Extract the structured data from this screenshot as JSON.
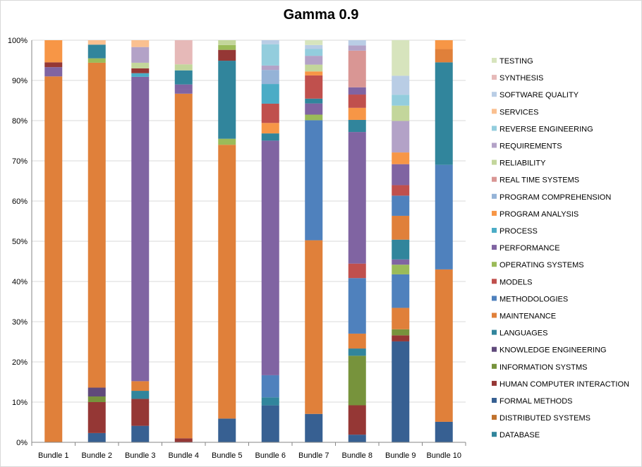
{
  "chart_data": {
    "type": "bar",
    "stacked": true,
    "percent": true,
    "title": "Gamma 0.9",
    "xlabel": "",
    "ylabel": "",
    "ylim": [
      0,
      100
    ],
    "yticks": [
      "0%",
      "10%",
      "20%",
      "30%",
      "40%",
      "50%",
      "60%",
      "70%",
      "80%",
      "90%",
      "100%"
    ],
    "legend_position": "right",
    "categories": [
      "Bundle 1",
      "Bundle 2",
      "Bundle 3",
      "Bundle 4",
      "Bundle 5",
      "Bundle 6",
      "Bundle 7",
      "Bundle 8",
      "Bundle 9",
      "Bundle 10"
    ],
    "series": [
      {
        "name": "DATABASE",
        "color": "#2E5C8A",
        "values": [
          0,
          0,
          0,
          0,
          0,
          0,
          0,
          0,
          0,
          0
        ]
      },
      {
        "name": "DISTRIBUTED SYSTEMS",
        "color": "#C0722E",
        "values": [
          0,
          0,
          0,
          0,
          0,
          0,
          0,
          0,
          0,
          0
        ]
      },
      {
        "name": "FORMAL METHODS",
        "color": "#3F6FA3",
        "values": [
          0,
          2.3,
          4.1,
          0,
          5.9,
          9.2,
          7.1,
          1.9,
          25.0,
          5.1
        ]
      },
      {
        "name": "HUMAN COMPUTER INTERACTION",
        "color": "#9E3B38",
        "values": [
          0,
          7.7,
          6.7,
          1.0,
          0,
          0,
          0,
          7.3,
          1.5,
          0
        ]
      },
      {
        "name": "INFORMATION SYSTMS",
        "color": "#7A9A3A",
        "values": [
          0,
          1.4,
          0,
          0,
          0,
          0,
          0,
          12.3,
          1.5,
          0
        ]
      },
      {
        "name": "KNOWLEDGE ENGINEERING",
        "color": "#664D8A",
        "values": [
          0,
          2.2,
          0,
          0,
          0,
          0,
          0,
          0,
          0,
          0
        ]
      },
      {
        "name": "LANGUAGES",
        "color": "#3A8FA3",
        "values": [
          0,
          0,
          2.0,
          0,
          0,
          2.0,
          0,
          1.8,
          0,
          0
        ]
      },
      {
        "name": "MAINTENANCE",
        "color": "#C0722E",
        "values": [
          91.0,
          80.8,
          2.4,
          85.7,
          68.1,
          0,
          43.4,
          3.7,
          5.3,
          37.9
        ]
      },
      {
        "name": "METHODOLOGIES",
        "color": "#4A7EBB",
        "values": [
          0,
          0,
          0,
          0,
          0,
          5.5,
          30.0,
          13.8,
          8.3,
          26.0
        ]
      },
      {
        "name": "MODELS",
        "color": "#C0504D",
        "values": [
          0,
          0,
          0,
          0,
          0,
          0,
          0,
          3.6,
          0,
          0
        ]
      },
      {
        "name": "OPERATING SYSTEMS",
        "color": "#8CA34F",
        "values": [
          0,
          0,
          0,
          0,
          1.5,
          0,
          1.4,
          0,
          2.4,
          0
        ]
      },
      {
        "name": "PERFORMANCE",
        "color": "#74589A",
        "values": [
          2.3,
          0,
          75.7,
          1.1,
          0,
          58.4,
          2.8,
          32.7,
          1.3,
          0
        ]
      },
      {
        "name": "PROCESS",
        "color": "#3BA2C0",
        "values": [
          0,
          0,
          0.9,
          0,
          0,
          0,
          0,
          0,
          0,
          0
        ]
      },
      {
        "name": "PROGRAM ANALYSIS",
        "color": "#F79646",
        "values": [
          0,
          0,
          0,
          0,
          0,
          0,
          0,
          0,
          0,
          0
        ]
      },
      {
        "name": "PROGRAM COMPREHENSION",
        "color": "#95B3D7",
        "values": [
          0,
          0,
          0,
          0,
          0,
          0,
          0,
          0,
          0,
          0
        ]
      },
      {
        "name": "REAL TIME SYSTEMS",
        "color": "#D99694",
        "values": [
          0,
          0,
          0,
          0,
          0,
          0,
          0,
          0,
          0,
          0
        ]
      },
      {
        "name": "RELIABILITY",
        "color": "#C3D69B",
        "values": [
          0,
          0,
          0,
          0,
          0,
          0,
          0,
          0,
          0,
          0
        ]
      },
      {
        "name": "REQUIREMENTS",
        "color": "#B3A2C7",
        "values": [
          0,
          0,
          0,
          0,
          0,
          0,
          0,
          0,
          0,
          0
        ]
      },
      {
        "name": "REVERSE ENGINEERING",
        "color": "#93CDDD",
        "values": [
          0,
          0,
          0,
          0,
          0,
          0,
          0,
          0,
          0,
          0
        ]
      },
      {
        "name": "SERVICES",
        "color": "#FAC090",
        "values": [
          0,
          0,
          0,
          0,
          0,
          0,
          0,
          0,
          0,
          0
        ]
      },
      {
        "name": "SOFTWARE QUALITY",
        "color": "#B9CDE5",
        "values": [
          0,
          0,
          0,
          0,
          0,
          0,
          0,
          0,
          0,
          0
        ]
      },
      {
        "name": "SYNTHESIS",
        "color": "#E6B9B8",
        "values": [
          0,
          0,
          0,
          0,
          0,
          0,
          0,
          0,
          0,
          0
        ]
      },
      {
        "name": "TESTING",
        "color": "#D7E4BD",
        "values": [
          0,
          0,
          0,
          0,
          0,
          0,
          0,
          0,
          0,
          0
        ]
      }
    ],
    "upper_segments": [
      [
        {
          "s": "HUMAN COMPUTER INTERACTION",
          "v": 1.2
        },
        {
          "s": "PROGRAM ANALYSIS",
          "v": 5.5
        }
      ],
      [
        {
          "s": "OPERATING SYSTEMS",
          "v": 1.1
        },
        {
          "s": "LANGUAGES",
          "v": 3.4
        },
        {
          "s": "SERVICES",
          "v": 1.1
        }
      ],
      [
        {
          "s": "HUMAN COMPUTER INTERACTION",
          "v": 1.2
        },
        {
          "s": "RELIABILITY",
          "v": 1.4
        },
        {
          "s": "REQUIREMENTS",
          "v": 3.9
        },
        {
          "s": "SERVICES",
          "v": 1.7
        }
      ],
      [
        {
          "s": "PERFORMANCE",
          "v": 1.2
        },
        {
          "s": "LANGUAGES",
          "v": 3.5
        },
        {
          "s": "RELIABILITY",
          "v": 1.5
        },
        {
          "s": "SYNTHESIS",
          "v": 6.0
        }
      ],
      [
        {
          "s": "LANGUAGES",
          "v": 19.4
        },
        {
          "s": "HUMAN COMPUTER INTERACTION",
          "v": 2.7
        },
        {
          "s": "OPERATING SYSTEMS",
          "v": 1.2
        },
        {
          "s": "RELIABILITY",
          "v": 1.2
        }
      ],
      [
        {
          "s": "PERFORMANCE",
          "v": 0
        },
        {
          "s": "LANGUAGES",
          "v": 1.8
        },
        {
          "s": "PROGRAM ANALYSIS",
          "v": 2.6
        },
        {
          "s": "MODELS",
          "v": 4.8
        },
        {
          "s": "PROCESS",
          "v": 4.9
        },
        {
          "s": "PROGRAM COMPREHENSION",
          "v": 3.5
        },
        {
          "s": "REQUIREMENTS",
          "v": 1.1
        },
        {
          "s": "REVERSE ENGINEERING",
          "v": 5.3
        },
        {
          "s": "SOFTWARE QUALITY",
          "v": 1.0
        }
      ],
      [
        {
          "s": "LANGUAGES",
          "v": 1.2
        },
        {
          "s": "MODELS",
          "v": 5.8
        },
        {
          "s": "PROGRAM ANALYSIS",
          "v": 1.0
        },
        {
          "s": "RELIABILITY",
          "v": 1.7
        },
        {
          "s": "REQUIREMENTS",
          "v": 2.2
        },
        {
          "s": "REVERSE ENGINEERING",
          "v": 1.7
        },
        {
          "s": "SOFTWARE QUALITY",
          "v": 1.0
        },
        {
          "s": "TESTING",
          "v": 1.2
        }
      ],
      [
        {
          "s": "LANGUAGES",
          "v": 3.0
        },
        {
          "s": "PROGRAM ANALYSIS",
          "v": 3.0
        },
        {
          "s": "MODELS",
          "v": 3.3
        },
        {
          "s": "PERFORMANCE",
          "v": 1.8
        },
        {
          "s": "REAL TIME SYSTEMS",
          "v": 9.1
        },
        {
          "s": "REQUIREMENTS",
          "v": 1.3
        },
        {
          "s": "SOFTWARE QUALITY",
          "v": 1.3
        }
      ],
      [
        {
          "s": "LANGUAGES",
          "v": 4.9
        },
        {
          "s": "MAINTENANCE",
          "v": 5.9
        },
        {
          "s": "METHODOLOGIES",
          "v": 5.0
        },
        {
          "s": "MODELS",
          "v": 2.6
        },
        {
          "s": "PERFORMANCE",
          "v": 5.2
        },
        {
          "s": "PROGRAM ANALYSIS",
          "v": 2.9
        },
        {
          "s": "REQUIREMENTS",
          "v": 7.8
        },
        {
          "s": "RELIABILITY",
          "v": 3.8
        },
        {
          "s": "REVERSE ENGINEERING",
          "v": 2.7
        },
        {
          "s": "SOFTWARE QUALITY",
          "v": 4.7
        },
        {
          "s": "TESTING",
          "v": 8.8
        }
      ],
      [
        {
          "s": "LANGUAGES",
          "v": 25.5
        },
        {
          "s": "MAINTENANCE",
          "v": 3.3
        },
        {
          "s": "PROGRAM ANALYSIS",
          "v": 2.2
        }
      ]
    ],
    "legend_order": [
      "TESTING",
      "SYNTHESIS",
      "SOFTWARE QUALITY",
      "SERVICES",
      "REVERSE ENGINEERING",
      "REQUIREMENTS",
      "RELIABILITY",
      "REAL TIME SYSTEMS",
      "PROGRAM COMPREHENSION",
      "PROGRAM ANALYSIS",
      "PROCESS",
      "PERFORMANCE",
      "OPERATING SYSTEMS",
      "MODELS",
      "METHODOLOGIES",
      "MAINTENANCE",
      "LANGUAGES",
      "KNOWLEDGE ENGINEERING",
      "INFORMATION SYSTMS",
      "HUMAN COMPUTER INTERACTION",
      "FORMAL METHODS",
      "DISTRIBUTED SYSTEMS",
      "DATABASE"
    ],
    "legend_colors": {
      "TESTING": "#D7E4BD",
      "SYNTHESIS": "#E6B9B8",
      "SOFTWARE QUALITY": "#B9CDE5",
      "SERVICES": "#FAC090",
      "REVERSE ENGINEERING": "#93CDDD",
      "REQUIREMENTS": "#B3A2C7",
      "RELIABILITY": "#C3D69B",
      "REAL TIME SYSTEMS": "#D99694",
      "PROGRAM COMPREHENSION": "#95B3D7",
      "PROGRAM ANALYSIS": "#F79646",
      "PROCESS": "#4BACC6",
      "PERFORMANCE": "#8064A2",
      "OPERATING SYSTEMS": "#9BBB59",
      "MODELS": "#C0504D",
      "METHODOLOGIES": "#4F81BD",
      "MAINTENANCE": "#E0803A",
      "LANGUAGES": "#31859C",
      "KNOWLEDGE ENGINEERING": "#604A7B",
      "INFORMATION SYSTMS": "#77933C",
      "HUMAN COMPUTER INTERACTION": "#953735",
      "FORMAL METHODS": "#376092",
      "DISTRIBUTED SYSTEMS": "#C0722E",
      "DATABASE": "#31859C"
    }
  }
}
